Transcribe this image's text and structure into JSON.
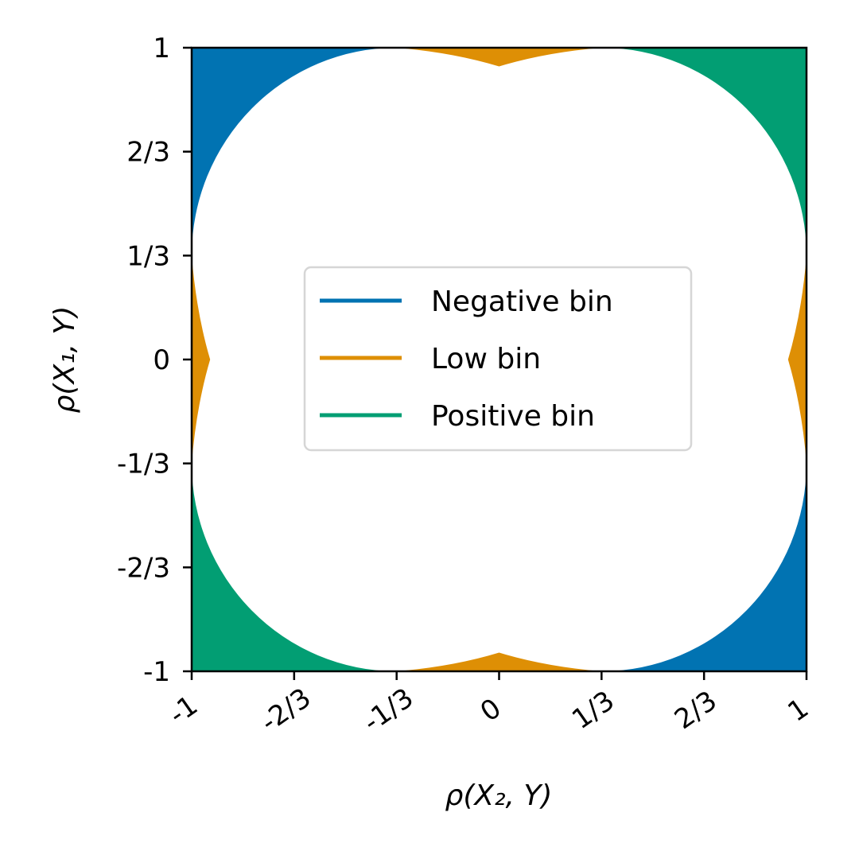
{
  "chart_data": {
    "type": "area",
    "title": "",
    "xlabel": "ρ(X₂, Y)",
    "ylabel": "ρ(X₁, Y)",
    "xlim": [
      -1,
      1
    ],
    "ylim": [
      -1,
      1
    ],
    "grid": false,
    "xticks": [
      -1,
      -0.6667,
      -0.3333,
      0,
      0.3333,
      0.6667,
      1
    ],
    "yticks": [
      -1,
      -0.6667,
      -0.3333,
      0,
      0.3333,
      0.6667,
      1
    ],
    "xtick_labels": [
      "-1",
      "-2/3",
      "-1/3",
      "0",
      "1/3",
      "2/3",
      "1"
    ],
    "ytick_labels": [
      "-1",
      "-2/3",
      "-1/3",
      "0",
      "1/3",
      "2/3",
      "1"
    ],
    "legend_placement": "center",
    "series": [
      {
        "name": "Negative bin",
        "color": "#0173b2",
        "regions": [
          "top-left corner",
          "bottom-right corner"
        ]
      },
      {
        "name": "Low bin",
        "color": "#de8f05",
        "regions": [
          "top center",
          "bottom center",
          "left center",
          "right center"
        ]
      },
      {
        "name": "Positive bin",
        "color": "#029e73",
        "regions": [
          "top-right corner",
          "bottom-left corner"
        ]
      }
    ],
    "boundary": {
      "corner_arc_center_abs": 0.3333,
      "corner_arc_radius": 0.6667,
      "cusp_abs": 0.94
    }
  }
}
